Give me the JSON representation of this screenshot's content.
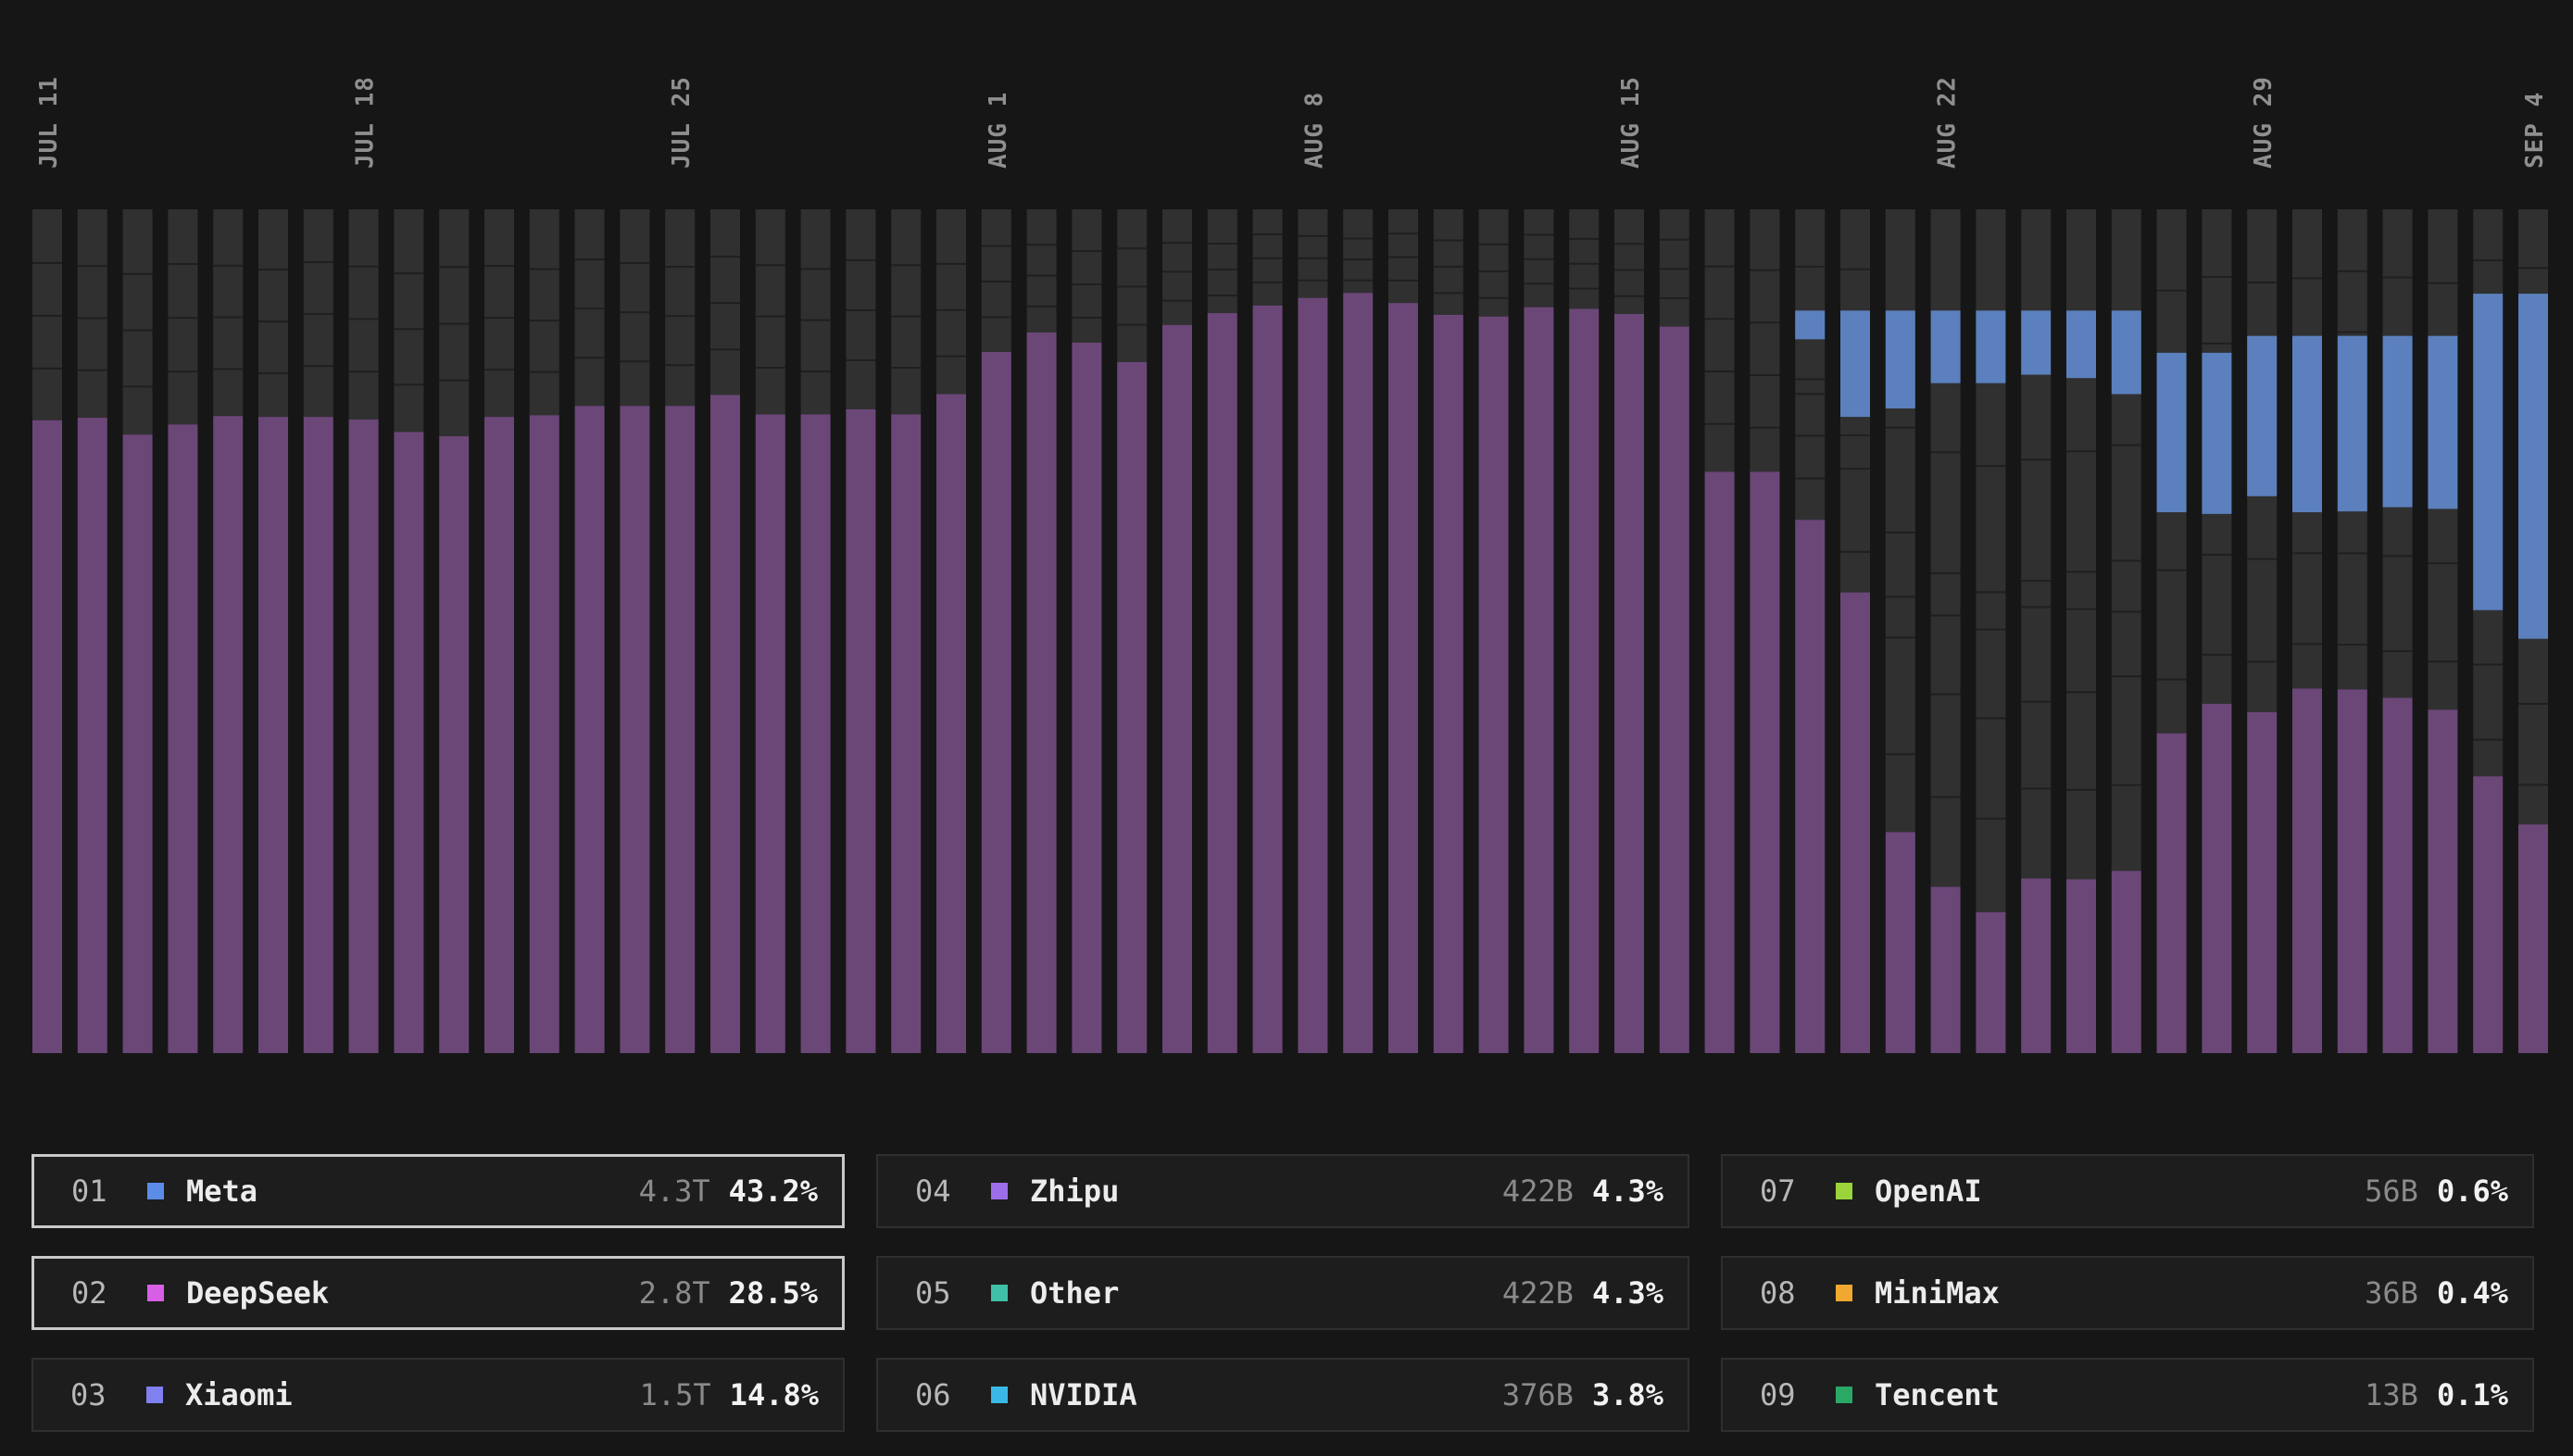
{
  "chart_data": {
    "type": "bar",
    "stacked": true,
    "normalized": true,
    "title": "",
    "xlabel": "",
    "ylabel": "",
    "ylim": [
      0,
      1
    ],
    "x_tick_labels": [
      "JUL 11",
      "JUL 18",
      "JUL 25",
      "AUG 1",
      "AUG 8",
      "AUG 15",
      "AUG 22",
      "AUG 29",
      "SEP 4"
    ],
    "x_tick_days": [
      0,
      7,
      14,
      21,
      28,
      35,
      42,
      49,
      55
    ],
    "days": 56,
    "series_colors": {
      "Meta": "#5b80bd",
      "Xiaomi": "#6b4778",
      "Other": "#303030"
    },
    "purple_share": [
      0.75,
      0.753,
      0.733,
      0.745,
      0.755,
      0.754,
      0.754,
      0.751,
      0.736,
      0.731,
      0.754,
      0.756,
      0.767,
      0.767,
      0.767,
      0.78,
      0.757,
      0.757,
      0.763,
      0.757,
      0.781,
      0.831,
      0.854,
      0.842,
      0.819,
      0.863,
      0.877,
      0.886,
      0.895,
      0.901,
      0.889,
      0.875,
      0.873,
      0.884,
      0.882,
      0.876,
      0.861,
      0.689,
      0.689,
      0.632,
      0.546,
      0.262,
      0.197,
      0.167,
      0.207,
      0.206,
      0.216,
      0.379,
      0.414,
      0.404,
      0.432,
      0.431,
      0.421,
      0.407,
      0.328,
      0.271
    ],
    "blue_share": [
      0,
      0,
      0,
      0,
      0,
      0,
      0,
      0,
      0,
      0,
      0,
      0,
      0,
      0,
      0,
      0,
      0,
      0,
      0,
      0,
      0,
      0,
      0,
      0,
      0,
      0,
      0,
      0,
      0,
      0,
      0,
      0,
      0,
      0,
      0,
      0,
      0,
      0,
      0,
      0.034,
      0.126,
      0.116,
      0.086,
      0.086,
      0.076,
      0.08,
      0.099,
      0.189,
      0.191,
      0.19,
      0.209,
      0.208,
      0.203,
      0.205,
      0.375,
      0.409
    ]
  },
  "legend": [
    {
      "rank": "01",
      "name": "Meta",
      "tokens": "4.3T",
      "share": "43.2%",
      "color": "#5a8ce8",
      "highlight": true
    },
    {
      "rank": "02",
      "name": "DeepSeek",
      "tokens": "2.8T",
      "share": "28.5%",
      "color": "#d75fe6",
      "highlight": true
    },
    {
      "rank": "03",
      "name": "Xiaomi",
      "tokens": "1.5T",
      "share": "14.8%",
      "color": "#8080f0",
      "highlight": false
    },
    {
      "rank": "04",
      "name": "Zhipu",
      "tokens": "422B",
      "share": "4.3%",
      "color": "#9c6ee8",
      "highlight": false
    },
    {
      "rank": "05",
      "name": "Other",
      "tokens": "422B",
      "share": "4.3%",
      "color": "#40c0a8",
      "highlight": false
    },
    {
      "rank": "06",
      "name": "NVIDIA",
      "tokens": "376B",
      "share": "3.8%",
      "color": "#3ab8e6",
      "highlight": false
    },
    {
      "rank": "07",
      "name": "OpenAI",
      "tokens": "56B",
      "share": "0.6%",
      "color": "#9ad43a",
      "highlight": false
    },
    {
      "rank": "08",
      "name": "MiniMax",
      "tokens": "36B",
      "share": "0.4%",
      "color": "#f0a830",
      "highlight": false
    },
    {
      "rank": "09",
      "name": "Tencent",
      "tokens": "13B",
      "share": "0.1%",
      "color": "#2aa866",
      "highlight": false
    }
  ]
}
